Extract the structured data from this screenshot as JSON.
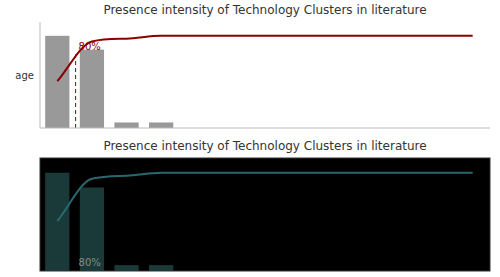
{
  "chart_data": [
    {
      "type": "bar",
      "title": "Presence intensity of Technology Clusters in literature",
      "ylabel": "age",
      "categories": [
        null,
        null,
        null,
        null,
        null,
        null,
        null,
        null,
        null,
        null,
        null,
        null,
        null
      ],
      "series": [
        {
          "type": "bar",
          "color": "#999999",
          "values": [
            100,
            85,
            6,
            6,
            0,
            0,
            0,
            0,
            0,
            0,
            0,
            0,
            0
          ]
        },
        {
          "type": "line",
          "color": "#8b0000",
          "values": [
            50.76142131979695,
            93.90862944162437,
            96.95431472081218,
            100,
            100,
            100,
            100,
            100,
            100,
            100,
            100,
            100,
            100
          ]
        }
      ],
      "annotations": [
        {
          "text": "80%",
          "x": 0.529,
          "y": 82,
          "line": [
            0,
            80
          ]
        }
      ],
      "ylim": [
        0,
        115
      ],
      "tick_labels": false
    },
    {
      "type": "bar",
      "title": "Presence intensity of Technology Clusters in literature",
      "categories": [
        null,
        null,
        null,
        null,
        null,
        null,
        null,
        null,
        null,
        null,
        null,
        null,
        null
      ],
      "series": [
        {
          "type": "bar",
          "color": "#1a3a3a",
          "values": [
            100,
            85,
            6,
            6,
            0,
            0,
            0,
            0,
            0,
            0,
            0,
            0,
            0
          ]
        },
        {
          "type": "line",
          "color": "#2a6870",
          "values": [
            50.76142131979695,
            93.90862944162437,
            96.95431472081218,
            100,
            100,
            100,
            100,
            100,
            100,
            100,
            100,
            100,
            100
          ]
        }
      ],
      "annotations": [
        {
          "text": "80%",
          "x": 0.529,
          "y": 3
        }
      ],
      "ylim": [
        0,
        115
      ],
      "tick_labels": false
    }
  ]
}
